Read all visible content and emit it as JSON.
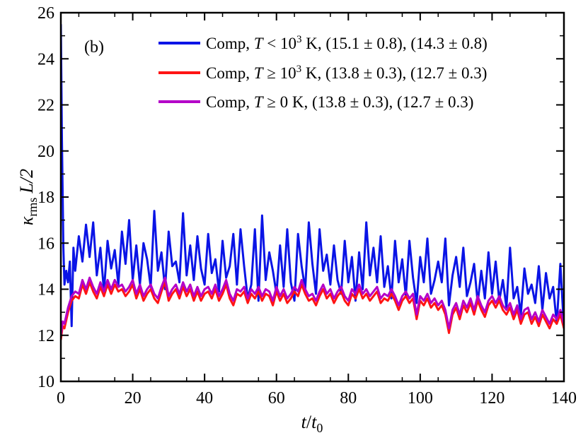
{
  "chart_data": {
    "type": "line",
    "panel_label": "(b)",
    "xlabel": "t/t0",
    "xlabel_parts": {
      "num": "t",
      "slash": "/",
      "den": "t",
      "den_sub": "0"
    },
    "ylabel": "κrms L/2",
    "ylabel_parts": {
      "kappa": "κ",
      "sub": "rms",
      "rest": "L/2"
    },
    "xlim": [
      0,
      140
    ],
    "ylim": [
      10,
      26
    ],
    "xticks": [
      0,
      20,
      40,
      60,
      80,
      100,
      120,
      140
    ],
    "yticks": [
      10,
      12,
      14,
      16,
      18,
      20,
      22,
      24,
      26
    ],
    "xtick_labels": [
      "0",
      "20",
      "40",
      "60",
      "80",
      "100",
      "120",
      "140"
    ],
    "ytick_labels": [
      "10",
      "12",
      "14",
      "16",
      "18",
      "20",
      "22",
      "24",
      "26"
    ],
    "legend_position": "top-right",
    "grid": false,
    "series": [
      {
        "name": "Comp, T < 10^3 K, (15.1 ± 0.8), (14.3 ± 0.8)",
        "label_parts": {
          "pre": "Comp, ",
          "var": "T",
          "rel": " < 10",
          "sup": "3",
          "post": " K, (15.1 ± 0.8), (14.3 ± 0.8)"
        },
        "color": "#0a14e6",
        "x": [
          0,
          0.3,
          0.7,
          1,
          1.5,
          2,
          2.5,
          3,
          3.5,
          4,
          5,
          6,
          7,
          8,
          9,
          10,
          11,
          12,
          13,
          14,
          15,
          16,
          17,
          18,
          19,
          20,
          21,
          22,
          23,
          24,
          25,
          26,
          27,
          28,
          29,
          30,
          31,
          32,
          33,
          34,
          35,
          36,
          37,
          38,
          39,
          40,
          41,
          42,
          43,
          44,
          45,
          46,
          47,
          48,
          49,
          50,
          51,
          52,
          53,
          54,
          55,
          56,
          57,
          58,
          59,
          60,
          61,
          62,
          63,
          64,
          65,
          66,
          67,
          68,
          69,
          70,
          71,
          72,
          73,
          74,
          75,
          76,
          77,
          78,
          79,
          80,
          81,
          82,
          83,
          84,
          85,
          86,
          87,
          88,
          89,
          90,
          91,
          92,
          93,
          94,
          95,
          96,
          97,
          98,
          99,
          100,
          101,
          102,
          103,
          104,
          105,
          106,
          107,
          108,
          109,
          110,
          111,
          112,
          113,
          114,
          115,
          116,
          117,
          118,
          119,
          120,
          121,
          122,
          123,
          124,
          125,
          126,
          127,
          128,
          129,
          130,
          131,
          132,
          133,
          134,
          135,
          136,
          137,
          138,
          139,
          140
        ],
        "y": [
          25.5,
          20.5,
          15.8,
          14.2,
          14.8,
          14.3,
          15.2,
          12.4,
          15.8,
          14.8,
          16.3,
          15.2,
          16.8,
          15.4,
          16.9,
          14.6,
          15.8,
          13.9,
          16.1,
          14.9,
          15.7,
          14.2,
          16.5,
          15.1,
          17.0,
          14.4,
          15.9,
          14.2,
          16.0,
          15.3,
          14.1,
          17.4,
          14.8,
          15.6,
          14.0,
          16.5,
          15.0,
          15.2,
          14.3,
          17.3,
          14.6,
          15.9,
          14.4,
          16.3,
          14.9,
          14.2,
          16.4,
          14.7,
          15.3,
          13.9,
          16.1,
          14.5,
          15.0,
          16.4,
          14.2,
          16.6,
          15.0,
          13.6,
          14.2,
          16.6,
          13.5,
          17.2,
          14.4,
          15.6,
          14.8,
          13.8,
          15.9,
          14.1,
          16.6,
          14.3,
          13.5,
          16.4,
          15.0,
          14.0,
          16.9,
          15.1,
          13.8,
          16.6,
          14.8,
          15.5,
          14.2,
          15.9,
          14.4,
          13.8,
          16.1,
          14.3,
          15.4,
          13.5,
          15.6,
          14.0,
          16.9,
          14.6,
          15.8,
          14.3,
          16.3,
          14.1,
          15.0,
          13.6,
          16.1,
          14.3,
          15.3,
          13.7,
          16.1,
          14.5,
          13.4,
          15.4,
          14.3,
          16.2,
          13.8,
          14.4,
          15.2,
          14.3,
          16.2,
          13.3,
          14.6,
          15.4,
          14.1,
          15.8,
          13.7,
          14.3,
          15.1,
          13.4,
          14.8,
          13.6,
          15.6,
          13.8,
          15.2,
          13.5,
          14.4,
          13.2,
          15.8,
          13.6,
          14.1,
          12.9,
          14.9,
          13.8,
          14.2,
          13.4,
          15.0,
          13.1,
          14.7,
          13.6,
          14.1,
          12.5,
          15.1,
          12.3
        ]
      },
      {
        "name": "Comp, T ≥ 10^3 K, (13.8 ± 0.3), (12.7 ± 0.3)",
        "label_parts": {
          "pre": "Comp, ",
          "var": "T",
          "rel": " ≥ 10",
          "sup": "3",
          "post": " K, (13.8 ± 0.3), (12.7 ± 0.3)"
        },
        "color": "#ff1414",
        "x": [
          0,
          0.5,
          1,
          2,
          3,
          4,
          5,
          6,
          7,
          8,
          9,
          10,
          11,
          12,
          13,
          14,
          15,
          16,
          17,
          18,
          19,
          20,
          21,
          22,
          23,
          24,
          25,
          26,
          27,
          28,
          29,
          30,
          31,
          32,
          33,
          34,
          35,
          36,
          37,
          38,
          39,
          40,
          41,
          42,
          43,
          44,
          45,
          46,
          47,
          48,
          49,
          50,
          51,
          52,
          53,
          54,
          55,
          56,
          57,
          58,
          59,
          60,
          61,
          62,
          63,
          64,
          65,
          66,
          67,
          68,
          69,
          70,
          71,
          72,
          73,
          74,
          75,
          76,
          77,
          78,
          79,
          80,
          81,
          82,
          83,
          84,
          85,
          86,
          87,
          88,
          89,
          90,
          91,
          92,
          93,
          94,
          95,
          96,
          97,
          98,
          99,
          100,
          101,
          102,
          103,
          104,
          105,
          106,
          107,
          108,
          109,
          110,
          111,
          112,
          113,
          114,
          115,
          116,
          117,
          118,
          119,
          120,
          121,
          122,
          123,
          124,
          125,
          126,
          127,
          128,
          129,
          130,
          131,
          132,
          133,
          134,
          135,
          136,
          137,
          138,
          139,
          140
        ],
        "y": [
          11.8,
          12.4,
          12.3,
          13.0,
          13.5,
          13.7,
          13.6,
          14.2,
          13.8,
          14.3,
          13.9,
          13.6,
          14.1,
          13.7,
          14.2,
          13.8,
          14.2,
          13.9,
          14.0,
          13.7,
          13.9,
          14.2,
          13.6,
          14.0,
          13.5,
          13.8,
          14.0,
          13.6,
          13.4,
          13.9,
          14.3,
          13.5,
          13.8,
          14.0,
          13.6,
          14.1,
          13.7,
          14.0,
          13.5,
          13.9,
          13.5,
          13.8,
          13.9,
          13.6,
          14.0,
          13.5,
          13.8,
          14.2,
          13.6,
          13.3,
          13.8,
          13.7,
          13.9,
          13.4,
          13.8,
          13.6,
          13.9,
          13.5,
          13.8,
          13.7,
          13.3,
          13.9,
          13.5,
          13.8,
          13.4,
          13.6,
          13.9,
          13.7,
          14.2,
          13.8,
          13.5,
          13.6,
          13.3,
          13.7,
          14.0,
          13.6,
          13.8,
          13.4,
          13.7,
          13.9,
          13.5,
          13.3,
          13.8,
          13.6,
          14.0,
          13.6,
          13.8,
          13.5,
          13.7,
          13.9,
          13.4,
          13.6,
          13.5,
          13.8,
          13.5,
          13.1,
          13.5,
          13.7,
          13.4,
          13.6,
          12.7,
          13.5,
          13.3,
          13.6,
          13.2,
          13.4,
          13.1,
          13.3,
          12.9,
          12.1,
          12.9,
          13.2,
          12.7,
          13.3,
          13.0,
          13.4,
          12.9,
          13.5,
          13.1,
          12.8,
          13.3,
          13.5,
          13.2,
          13.5,
          13.1,
          12.9,
          13.2,
          12.7,
          13.1,
          12.5,
          12.9,
          13.0,
          12.5,
          12.8,
          12.4,
          12.9,
          12.6,
          12.3,
          12.7,
          12.5,
          12.9,
          12.3
        ]
      },
      {
        "name": "Comp, T ≥ 0 K, (13.8 ± 0.3), (12.7 ± 0.3)",
        "label_parts": {
          "pre": "Comp, ",
          "var": "T",
          "rel": " ≥ 0",
          "sup": "",
          "post": " K, (13.8 ± 0.3), (12.7 ± 0.3)"
        },
        "color": "#b400c8",
        "x": [
          0,
          0.5,
          1,
          2,
          3,
          4,
          5,
          6,
          7,
          8,
          9,
          10,
          11,
          12,
          13,
          14,
          15,
          16,
          17,
          18,
          19,
          20,
          21,
          22,
          23,
          24,
          25,
          26,
          27,
          28,
          29,
          30,
          31,
          32,
          33,
          34,
          35,
          36,
          37,
          38,
          39,
          40,
          41,
          42,
          43,
          44,
          45,
          46,
          47,
          48,
          49,
          50,
          51,
          52,
          53,
          54,
          55,
          56,
          57,
          58,
          59,
          60,
          61,
          62,
          63,
          64,
          65,
          66,
          67,
          68,
          69,
          70,
          71,
          72,
          73,
          74,
          75,
          76,
          77,
          78,
          79,
          80,
          81,
          82,
          83,
          84,
          85,
          86,
          87,
          88,
          89,
          90,
          91,
          92,
          93,
          94,
          95,
          96,
          97,
          98,
          99,
          100,
          101,
          102,
          103,
          104,
          105,
          106,
          107,
          108,
          109,
          110,
          111,
          112,
          113,
          114,
          115,
          116,
          117,
          118,
          119,
          120,
          121,
          122,
          123,
          124,
          125,
          126,
          127,
          128,
          129,
          130,
          131,
          132,
          133,
          134,
          135,
          136,
          137,
          138,
          139,
          140
        ],
        "y": [
          12.0,
          12.6,
          12.5,
          13.2,
          13.7,
          13.9,
          13.8,
          14.4,
          14.0,
          14.5,
          14.1,
          13.8,
          14.3,
          13.9,
          14.4,
          14.0,
          14.4,
          14.1,
          14.2,
          13.9,
          14.1,
          14.4,
          13.8,
          14.2,
          13.7,
          14.0,
          14.2,
          13.8,
          13.6,
          14.1,
          14.5,
          13.7,
          14.0,
          14.2,
          13.8,
          14.3,
          13.9,
          14.2,
          13.7,
          14.1,
          13.7,
          14.0,
          14.1,
          13.8,
          14.2,
          13.7,
          14.0,
          14.4,
          13.8,
          13.5,
          14.0,
          13.9,
          14.1,
          13.6,
          14.0,
          13.8,
          14.1,
          13.7,
          14.0,
          13.9,
          13.5,
          14.1,
          13.7,
          14.0,
          13.6,
          13.8,
          14.1,
          13.9,
          14.4,
          14.0,
          13.7,
          13.8,
          13.5,
          13.9,
          14.2,
          13.8,
          14.0,
          13.6,
          13.9,
          14.1,
          13.7,
          13.5,
          14.0,
          13.8,
          14.2,
          13.8,
          14.0,
          13.7,
          13.9,
          14.1,
          13.6,
          13.8,
          13.7,
          14.0,
          13.7,
          13.3,
          13.7,
          13.9,
          13.6,
          13.8,
          12.9,
          13.7,
          13.5,
          13.8,
          13.4,
          13.6,
          13.3,
          13.5,
          13.1,
          12.3,
          13.1,
          13.4,
          12.9,
          13.5,
          13.2,
          13.6,
          13.1,
          13.7,
          13.3,
          13.0,
          13.5,
          13.7,
          13.4,
          13.7,
          13.3,
          13.1,
          13.4,
          12.9,
          13.3,
          12.7,
          13.1,
          13.2,
          12.7,
          13.0,
          12.6,
          13.1,
          12.8,
          12.5,
          12.9,
          12.7,
          13.1,
          12.5
        ]
      }
    ]
  }
}
